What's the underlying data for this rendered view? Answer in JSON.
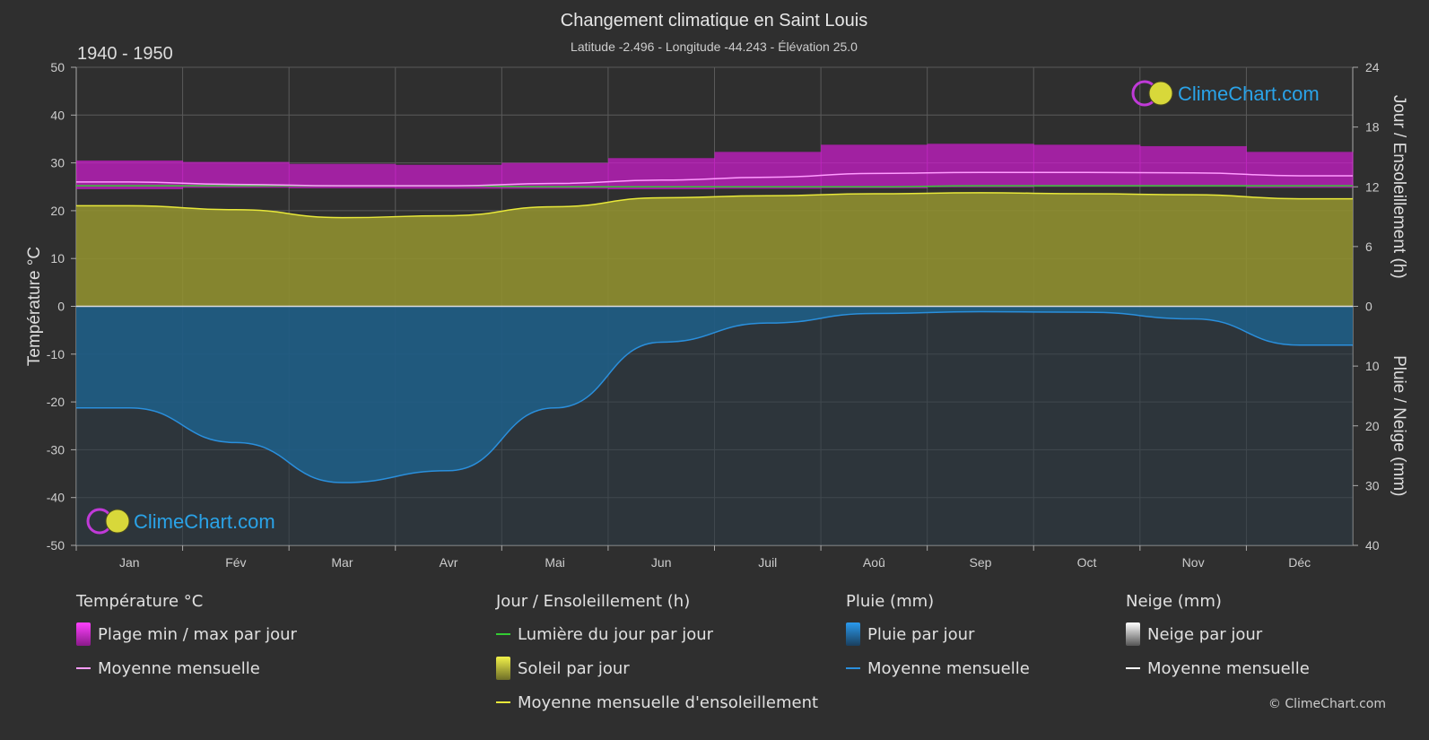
{
  "header": {
    "title": "Changement climatique en Saint Louis",
    "subtitle": "Latitude -2.496 - Longitude -44.243 - Élévation 25.0",
    "period": "1940 - 1950"
  },
  "watermark": "ClimeChart.com",
  "copyright": "© ClimeChart.com",
  "colors": {
    "background": "#2f2f2f",
    "temp_range": "#d11bd1",
    "temp_mean": "#ff9cff",
    "daylight": "#33cc33",
    "sunshine_fill": "#8f8f30",
    "sunshine_mean": "#e8e83a",
    "rain_fill": "#1f5f8a",
    "rain_mean": "#2a8fdc",
    "snow_mean": "#ffffff"
  },
  "chart_data": {
    "type": "area",
    "categories": [
      "Jan",
      "Fév",
      "Mar",
      "Avr",
      "Mai",
      "Jun",
      "Juil",
      "Aoû",
      "Sep",
      "Oct",
      "Nov",
      "Déc"
    ],
    "left_axis": {
      "label": "Température °C",
      "range": [
        -50,
        50
      ],
      "ticks": [
        50,
        40,
        30,
        20,
        10,
        0,
        -10,
        -20,
        -30,
        -40,
        -50
      ]
    },
    "right_axis_top": {
      "label": "Jour / Ensoleillement (h)",
      "range": [
        0,
        24
      ],
      "ticks": [
        24,
        18,
        12,
        6,
        0
      ]
    },
    "right_axis_bottom": {
      "label": "Pluie / Neige (mm)",
      "range": [
        0,
        40
      ],
      "ticks": [
        0,
        10,
        20,
        30,
        40
      ]
    },
    "grid": true,
    "series": [
      {
        "name": "Plage min / max par jour",
        "kind": "band",
        "axis": "temperature",
        "min": [
          24.5,
          24.8,
          24.7,
          24.6,
          24.6,
          24.5,
          24.6,
          24.7,
          24.9,
          25.0,
          25.0,
          24.8
        ],
        "max": [
          30.5,
          30.2,
          29.8,
          29.6,
          30.0,
          31.0,
          32.3,
          33.8,
          34.0,
          33.8,
          33.5,
          32.3
        ]
      },
      {
        "name": "Moyenne mensuelle",
        "kind": "line",
        "axis": "temperature",
        "values": [
          26.0,
          25.5,
          25.2,
          25.2,
          25.7,
          26.4,
          27.0,
          27.8,
          28.0,
          28.0,
          27.9,
          27.3
        ]
      },
      {
        "name": "Lumière du jour par jour",
        "kind": "line",
        "axis": "hours",
        "values": [
          12.1,
          12.1,
          12.1,
          12.1,
          12.0,
          12.0,
          12.0,
          12.0,
          12.1,
          12.1,
          12.1,
          12.1
        ]
      },
      {
        "name": "Soleil par jour",
        "kind": "area",
        "axis": "hours",
        "values": [
          10.1,
          9.7,
          8.9,
          9.1,
          10.0,
          10.9,
          11.1,
          11.3,
          11.4,
          11.3,
          11.2,
          10.8
        ]
      },
      {
        "name": "Moyenne mensuelle d'ensoleillement",
        "kind": "line",
        "axis": "hours",
        "values": [
          10.1,
          9.7,
          8.9,
          9.1,
          10.0,
          10.9,
          11.1,
          11.3,
          11.4,
          11.3,
          11.2,
          10.8
        ]
      },
      {
        "name": "Pluie par jour",
        "kind": "area",
        "axis": "precip",
        "values": [
          17.0,
          22.8,
          29.5,
          27.5,
          17.0,
          6.0,
          2.8,
          1.2,
          0.9,
          1.0,
          2.1,
          6.5
        ]
      },
      {
        "name": "Moyenne mensuelle",
        "kind": "line",
        "axis": "precip",
        "values": [
          17.0,
          22.8,
          29.5,
          27.5,
          17.0,
          6.0,
          2.8,
          1.2,
          0.9,
          1.0,
          2.1,
          6.5
        ]
      }
    ]
  },
  "legend": {
    "groups": [
      {
        "title": "Température °C",
        "items": [
          {
            "label": "Plage min / max par jour",
            "swatch": "box",
            "color": "#d11bd1"
          },
          {
            "label": "Moyenne mensuelle",
            "swatch": "line",
            "color": "#ff9cff"
          }
        ]
      },
      {
        "title": "Jour / Ensoleillement (h)",
        "items": [
          {
            "label": "Lumière du jour par jour",
            "swatch": "line",
            "color": "#33cc33"
          },
          {
            "label": "Soleil par jour",
            "swatch": "box",
            "color": "#c8c840"
          },
          {
            "label": "Moyenne mensuelle d'ensoleillement",
            "swatch": "line",
            "color": "#e8e83a"
          }
        ]
      },
      {
        "title": "Pluie (mm)",
        "items": [
          {
            "label": "Pluie par jour",
            "swatch": "box",
            "color": "#2a8fdc"
          },
          {
            "label": "Moyenne mensuelle",
            "swatch": "line",
            "color": "#2a8fdc"
          }
        ]
      },
      {
        "title": "Neige (mm)",
        "items": [
          {
            "label": "Neige par jour",
            "swatch": "box",
            "color": "#dddddd"
          },
          {
            "label": "Moyenne mensuelle",
            "swatch": "line",
            "color": "#ffffff"
          }
        ]
      }
    ]
  }
}
